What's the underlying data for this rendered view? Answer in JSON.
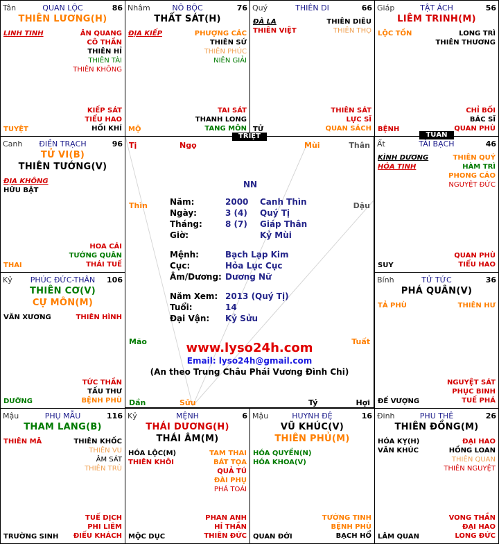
{
  "colors": {
    "red": "#d40000",
    "orange": "#ff7f00",
    "green": "#007a00",
    "black": "#000000",
    "navy": "#24258a",
    "lightorange": "#f0a050"
  },
  "palaces": {
    "ty": {
      "can": "Tân",
      "name": "QUAN LỘC",
      "age": "86",
      "main": [
        {
          "t": "THIÊN LƯƠNG(H)",
          "c": "orange"
        }
      ],
      "left": [
        {
          "t": "LINH TINH",
          "c": "red",
          "u": true
        }
      ],
      "right": [
        {
          "t": "ÂN QUANG",
          "c": "red"
        },
        {
          "t": "CÔ THẦN",
          "c": "red"
        },
        {
          "t": "THIÊN HỈ",
          "c": "black"
        },
        {
          "t": "THIÊN TÀI",
          "c": "green",
          "n": true
        },
        {
          "t": "THIÊN KHÔNG",
          "c": "red",
          "n": true
        }
      ],
      "bottom_right": [
        {
          "t": "KIẾP SÁT",
          "c": "red"
        },
        {
          "t": "TIỂU HAO",
          "c": "red"
        },
        {
          "t": "HỐI KHÍ",
          "c": "black"
        }
      ],
      "stage": {
        "t": "TUYỆT",
        "c": "orange"
      }
    },
    "ngo": {
      "can": "Nhâm",
      "name": "NÔ BỘC",
      "age": "76",
      "main": [
        {
          "t": "THẤT SÁT(H)",
          "c": "black"
        }
      ],
      "left": [
        {
          "t": "ĐỊA KIẾP",
          "c": "red",
          "u": true
        }
      ],
      "right": [
        {
          "t": "PHƯỢNG CÁC",
          "c": "orange"
        },
        {
          "t": "THIÊN SỨ",
          "c": "black"
        },
        {
          "t": "THIÊN PHÚC",
          "c": "lightorange",
          "n": true
        },
        {
          "t": "NIÊN GIẢI",
          "c": "green",
          "n": true
        }
      ],
      "bottom_right": [
        {
          "t": "TAI SÁT",
          "c": "red"
        },
        {
          "t": "THANH LONG",
          "c": "black"
        },
        {
          "t": "TANG MÔN",
          "c": "green"
        }
      ],
      "stage": {
        "t": "MỘ",
        "c": "orange"
      }
    },
    "mui": {
      "can": "Quý",
      "name": "THIÊN DI",
      "age": "66",
      "main": [],
      "left": [
        {
          "t": "ĐÀ LA",
          "c": "black",
          "u": true
        },
        {
          "t": "THIÊN VIỆT",
          "c": "red"
        }
      ],
      "right": [
        {
          "t": "THIÊN DIÊU",
          "c": "black"
        },
        {
          "t": "THIÊN THỌ",
          "c": "lightorange",
          "n": true
        }
      ],
      "bottom_right": [
        {
          "t": "THIÊN SÁT",
          "c": "red"
        },
        {
          "t": "LỰC SĨ",
          "c": "red"
        },
        {
          "t": "QUAN SÁCH",
          "c": "orange"
        }
      ],
      "stage": {
        "t": "TỬ",
        "c": "black"
      }
    },
    "than": {
      "can": "Giáp",
      "name": "TẬT ÁCH",
      "age": "56",
      "main": [
        {
          "t": "LIÊM TRINH(M)",
          "c": "red"
        }
      ],
      "left": [
        {
          "t": "LỘC TỒN",
          "c": "orange"
        }
      ],
      "right": [
        {
          "t": "LONG TRÌ",
          "c": "black"
        },
        {
          "t": "THIÊN THƯƠNG",
          "c": "black"
        }
      ],
      "bottom_right": [
        {
          "t": "CHỈ BỐI",
          "c": "red"
        },
        {
          "t": "BÁC SĨ",
          "c": "black"
        },
        {
          "t": "QUAN PHÙ",
          "c": "red"
        }
      ],
      "stage": {
        "t": "BỆNH",
        "c": "red"
      }
    },
    "thin": {
      "can": "Canh",
      "name": "ĐIỀN TRẠCH",
      "age": "96",
      "main": [
        {
          "t": "TỬ VI(B)",
          "c": "orange"
        },
        {
          "t": "THIÊN TƯỚNG(V)",
          "c": "black"
        }
      ],
      "left": [
        {
          "t": "ĐỊA KHÔNG",
          "c": "red",
          "u": true
        },
        {
          "t": "HỮU BẬT",
          "c": "black"
        }
      ],
      "right": [],
      "bottom_right": [
        {
          "t": "HOA CÁI",
          "c": "red"
        },
        {
          "t": "TƯỚNG QUÂN",
          "c": "green"
        },
        {
          "t": "THÁI TUẾ",
          "c": "red"
        }
      ],
      "stage": {
        "t": "THAI",
        "c": "orange"
      }
    },
    "dau": {
      "can": "Ất",
      "name": "TÀI BẠCH",
      "age": "46",
      "main": [],
      "left": [
        {
          "t": "KÌNH DƯƠNG",
          "c": "black",
          "u": true
        },
        {
          "t": "HỎA TINH",
          "c": "red",
          "u": true
        }
      ],
      "right": [
        {
          "t": "THIÊN QUÝ",
          "c": "orange"
        },
        {
          "t": "HÀM TRÌ",
          "c": "green"
        },
        {
          "t": "PHONG CÁO",
          "c": "orange"
        },
        {
          "t": "NGUYỆT ĐỨC",
          "c": "red",
          "n": true
        }
      ],
      "bottom_right": [
        {
          "t": "QUAN PHÙ",
          "c": "red"
        },
        {
          "t": "TIỂU HAO",
          "c": "red"
        }
      ],
      "stage": {
        "t": "SUY",
        "c": "black"
      }
    },
    "mao": {
      "can": "Kỷ",
      "name": "PHÚC ĐỨC-THÂN",
      "age": "106",
      "main": [
        {
          "t": "THIÊN CƠ(V)",
          "c": "green"
        },
        {
          "t": "CỰ MÔN(M)",
          "c": "orange"
        }
      ],
      "left": [
        {
          "t": "VĂN XƯƠNG",
          "c": "black",
          "n": false
        }
      ],
      "right": [
        {
          "t": "THIÊN HÌNH",
          "c": "red"
        }
      ],
      "bottom_right": [
        {
          "t": "TỨC THẦN",
          "c": "red"
        },
        {
          "t": "TẤU THƯ",
          "c": "black"
        },
        {
          "t": "BỆNH PHÙ",
          "c": "orange"
        }
      ],
      "stage": {
        "t": "DƯỠNG",
        "c": "green"
      }
    },
    "tuat": {
      "can": "Bính",
      "name": "TỬ TỨC",
      "age": "36",
      "main": [
        {
          "t": "PHÁ QUÂN(V)",
          "c": "black"
        }
      ],
      "left": [
        {
          "t": "TẢ PHÙ",
          "c": "orange"
        }
      ],
      "right": [
        {
          "t": "THIÊN HƯ",
          "c": "orange"
        }
      ],
      "bottom_right": [
        {
          "t": "NGUYỆT SÁT",
          "c": "red"
        },
        {
          "t": "PHỤC BINH",
          "c": "red"
        },
        {
          "t": "TUẾ PHÁ",
          "c": "red"
        }
      ],
      "stage": {
        "t": "ĐẾ VƯỢNG",
        "c": "black"
      }
    },
    "dan": {
      "can": "Mậu",
      "name": "PHỤ MẪU",
      "age": "116",
      "main": [
        {
          "t": "THAM LANG(B)",
          "c": "green"
        }
      ],
      "left": [
        {
          "t": "THIÊN MÃ",
          "c": "red"
        }
      ],
      "right": [
        {
          "t": "THIÊN KHỐC",
          "c": "black"
        },
        {
          "t": "THIÊN VU",
          "c": "lightorange",
          "n": true
        },
        {
          "t": "ÂM SÁT",
          "c": "black",
          "n": true
        },
        {
          "t": "THIÊN TRÙ",
          "c": "lightorange",
          "n": true
        }
      ],
      "bottom_right": [
        {
          "t": "TUẾ DỊCH",
          "c": "red"
        },
        {
          "t": "PHI LIÊM",
          "c": "red"
        },
        {
          "t": "ĐIẾU KHÁCH",
          "c": "red"
        }
      ],
      "stage": {
        "t": "TRƯỜNG SINH",
        "c": "black"
      }
    },
    "suu": {
      "can": "Kỷ",
      "name": "MỆNH",
      "age": "6",
      "main": [
        {
          "t": "THÁI DƯƠNG(H)",
          "c": "red"
        },
        {
          "t": "THÁI ÂM(M)",
          "c": "black"
        }
      ],
      "left": [
        {
          "t": "HÓA LỘC(M)",
          "c": "black"
        },
        {
          "t": "THIÊN KHÔI",
          "c": "red"
        }
      ],
      "right": [
        {
          "t": "TAM THAI",
          "c": "orange"
        },
        {
          "t": "BÁT TỌA",
          "c": "orange"
        },
        {
          "t": "QUẢ TÚ",
          "c": "red"
        },
        {
          "t": "ĐÀI PHỤ",
          "c": "orange"
        },
        {
          "t": "PHÁ TOÁI",
          "c": "red",
          "n": true
        }
      ],
      "bottom_right": [
        {
          "t": "PHAN ANH",
          "c": "red"
        },
        {
          "t": "HỈ THẦN",
          "c": "red"
        },
        {
          "t": "THIÊN ĐỨC",
          "c": "red"
        }
      ],
      "stage": {
        "t": "MỘC DỤC",
        "c": "black"
      }
    },
    "ti": {
      "can": "Mậu",
      "name": "HUYNH ĐỆ",
      "age": "16",
      "main": [
        {
          "t": "VŨ KHÚC(V)",
          "c": "black"
        },
        {
          "t": "THIÊN PHỦ(M)",
          "c": "orange"
        }
      ],
      "left": [
        {
          "t": "HÓA QUYỀN(N)",
          "c": "green"
        },
        {
          "t": "HÓA KHOA(V)",
          "c": "green"
        }
      ],
      "right": [],
      "bottom_right": [
        {
          "t": "TƯỚNG TINH",
          "c": "orange"
        },
        {
          "t": "BỆNH PHÙ",
          "c": "orange"
        },
        {
          "t": "BẠCH HỔ",
          "c": "black"
        }
      ],
      "stage": {
        "t": "QUAN ĐỚI",
        "c": "black"
      }
    },
    "hoi": {
      "can": "Đinh",
      "name": "PHU THÊ",
      "age": "26",
      "main": [
        {
          "t": "THIÊN ĐỒNG(M)",
          "c": "black"
        }
      ],
      "left": [
        {
          "t": "HÓA KỴ(H)",
          "c": "black"
        },
        {
          "t": "VĂN KHÚC",
          "c": "black"
        }
      ],
      "right": [
        {
          "t": "ĐẠI HAO",
          "c": "red"
        },
        {
          "t": "HỒNG LOAN",
          "c": "black"
        },
        {
          "t": "THIÊN QUAN",
          "c": "lightorange",
          "n": true
        },
        {
          "t": "THIÊN NGUYỆT",
          "c": "red",
          "n": true
        }
      ],
      "bottom_right": [
        {
          "t": "VONG THẦN",
          "c": "red"
        },
        {
          "t": "ĐẠI HAO",
          "c": "red"
        },
        {
          "t": "LONG ĐỨC",
          "c": "red"
        }
      ],
      "stage": {
        "t": "LÂM QUAN",
        "c": "black"
      }
    }
  },
  "markers": {
    "triet": "TRIỆT",
    "tuan": "TUẦN"
  },
  "branches": {
    "ti": "Tị",
    "ngo": "Ngọ",
    "mui": "Mùi",
    "than": "Thân",
    "thin": "Thìn",
    "dau": "Dậu",
    "mao": "Mão",
    "tuat": "Tuất",
    "dan": "Dần",
    "suu": "Sửu",
    "ty": "Tý",
    "hoi": "Hợi"
  },
  "center": {
    "gender": "NN",
    "rows": [
      {
        "label": "Năm:",
        "v1": "2000",
        "v2": "Canh Thìn"
      },
      {
        "label": "Ngày:",
        "v1": "3 (4)",
        "v2": "Quý Tị"
      },
      {
        "label": "Tháng:",
        "v1": "8 (7)",
        "v2": "Giáp Thân"
      },
      {
        "label": "Giờ:",
        "v1": "",
        "v2": "Kỷ Mùi"
      },
      {
        "label": "Mệnh:",
        "v1": "Bạch Lạp Kim",
        "v2": ""
      },
      {
        "label": "Cục:",
        "v1": "Hỏa Lục Cục",
        "v2": ""
      },
      {
        "label": "Âm/Dương:",
        "v1": "Dương Nữ",
        "v2": ""
      },
      {
        "label": "Năm Xem:",
        "v1": "2013 (Quý Tị)",
        "v2": ""
      },
      {
        "label": "Tuổi:",
        "v1": "14",
        "v2": ""
      },
      {
        "label": "Đại Vận:",
        "v1": "Kỷ Sửu",
        "v2": ""
      }
    ],
    "site": "www.lyso24h.com",
    "email": "Email: lyso24h@gmail.com",
    "note": "(An theo Trung Châu Phái Vương Đình Chi)"
  }
}
